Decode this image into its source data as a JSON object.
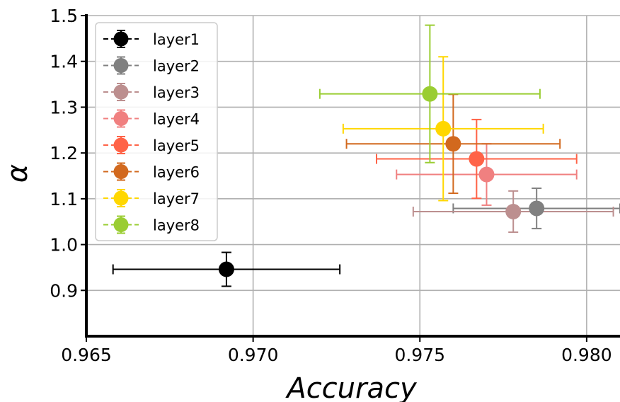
{
  "chart_data": {
    "type": "scatter",
    "xlabel": "Accuracy",
    "ylabel": "α",
    "xlim": [
      0.965,
      0.981
    ],
    "ylim": [
      0.8,
      1.5
    ],
    "x_ticks": [
      "0.965",
      "0.970",
      "0.975",
      "0.980"
    ],
    "y_ticks": [
      "0.9",
      "1.0",
      "1.1",
      "1.2",
      "1.3",
      "1.4",
      "1.5"
    ],
    "grid": true,
    "legend_position": "top-left",
    "series": [
      {
        "name": "layer1",
        "color": "#000000",
        "x": 0.9692,
        "y": 0.946,
        "xerr": 0.0034,
        "yerr": 0.037
      },
      {
        "name": "layer2",
        "color": "#808080",
        "x": 0.9785,
        "y": 1.079,
        "xerr": 0.0025,
        "yerr": 0.044
      },
      {
        "name": "layer3",
        "color": "#bc8f8f",
        "x": 0.9778,
        "y": 1.072,
        "xerr": 0.003,
        "yerr": 0.045
      },
      {
        "name": "layer4",
        "color": "#f08080",
        "x": 0.977,
        "y": 1.153,
        "xerr": 0.0027,
        "yerr": 0.067
      },
      {
        "name": "layer5",
        "color": "#ff6347",
        "x": 0.9767,
        "y": 1.187,
        "xerr": 0.003,
        "yerr": 0.086
      },
      {
        "name": "layer6",
        "color": "#d2691e",
        "x": 0.976,
        "y": 1.22,
        "xerr": 0.0032,
        "yerr": 0.108
      },
      {
        "name": "layer7",
        "color": "#ffd700",
        "x": 0.9757,
        "y": 1.253,
        "xerr": 0.003,
        "yerr": 0.157
      },
      {
        "name": "layer8",
        "color": "#9acd32",
        "x": 0.9753,
        "y": 1.329,
        "xerr": 0.0033,
        "yerr": 0.15
      }
    ]
  }
}
